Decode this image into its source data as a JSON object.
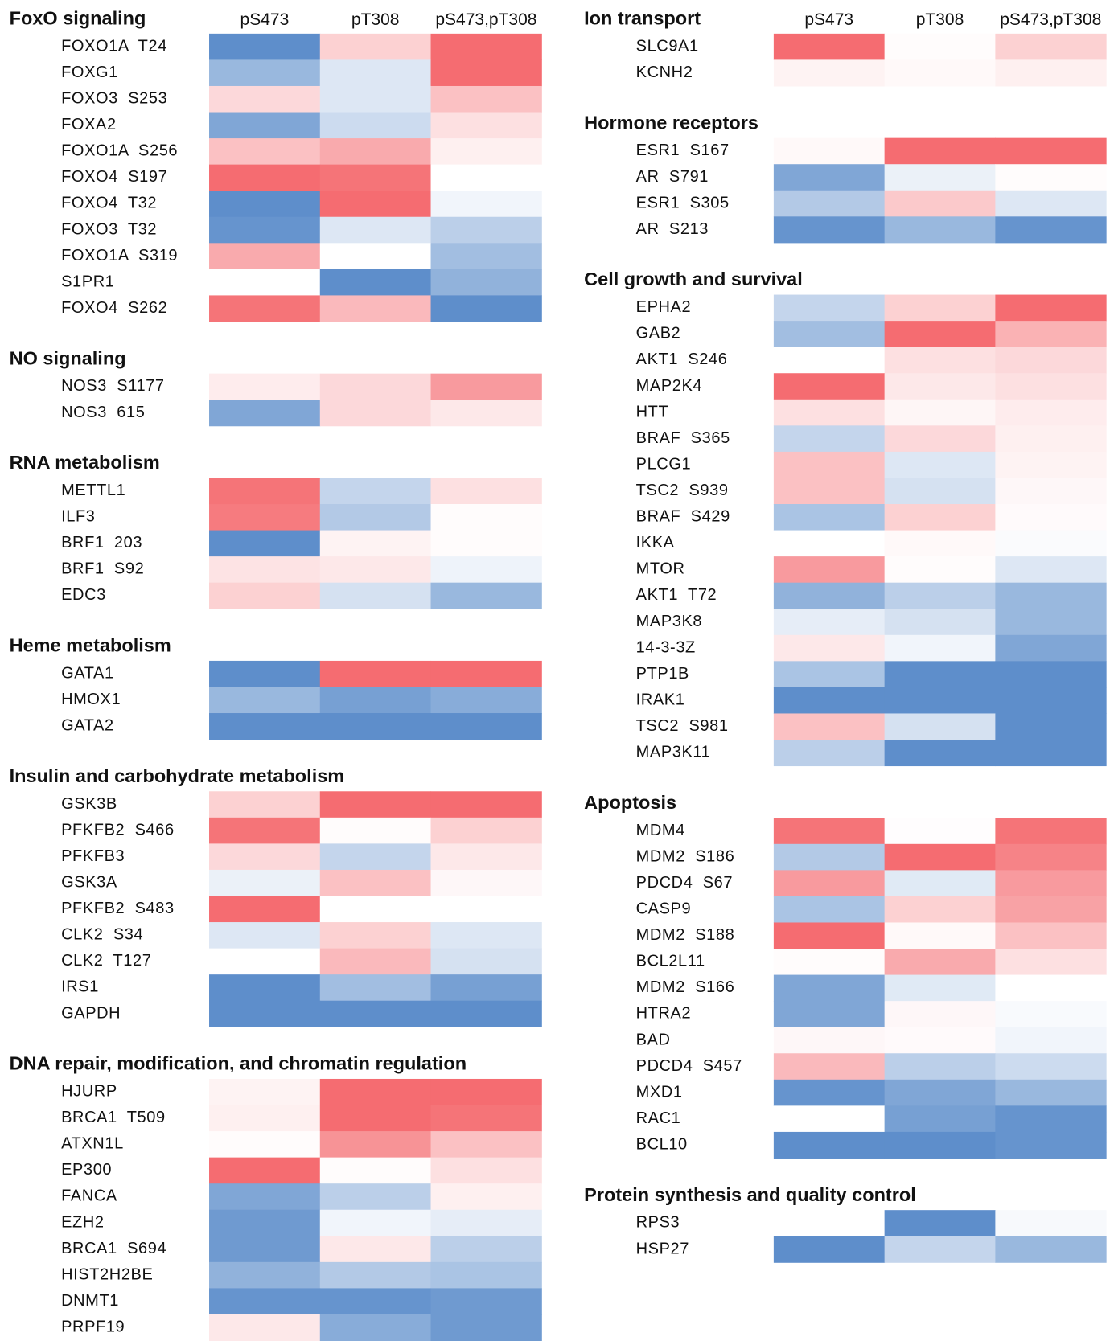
{
  "chart_data": {
    "type": "heatmap",
    "vlim": [
      -1,
      1
    ],
    "colors": {
      "low": "#5588c8",
      "mid": "#ffffff",
      "high": "#f46469"
    },
    "panels": [
      {
        "columns": [
          "pS473",
          "pT308",
          "pS473,pT308"
        ],
        "sections": [
          {
            "title": "FoxO signaling",
            "rows": [
              {
                "label": "FOXO1A  T24",
                "values": [
                  -0.95,
                  0.3,
                  0.95
                ]
              },
              {
                "label": "FOXG1",
                "values": [
                  -0.6,
                  -0.2,
                  0.95
                ]
              },
              {
                "label": "FOXO3  S253",
                "values": [
                  0.25,
                  -0.2,
                  0.4
                ]
              },
              {
                "label": "FOXA2",
                "values": [
                  -0.75,
                  -0.3,
                  0.2
                ]
              },
              {
                "label": "FOXO1A  S256",
                "values": [
                  0.4,
                  0.55,
                  0.1
                ]
              },
              {
                "label": "FOXO4  S197",
                "values": [
                  0.95,
                  0.9,
                  0
                ]
              },
              {
                "label": "FOXO4  T32",
                "values": [
                  -0.95,
                  0.95,
                  -0.08
                ]
              },
              {
                "label": "FOXO3  T32",
                "values": [
                  -0.9,
                  -0.2,
                  -0.4
                ]
              },
              {
                "label": "FOXO1A  S319",
                "values": [
                  0.55,
                  0,
                  -0.55
                ]
              },
              {
                "label": "S1PR1",
                "values": [
                  0,
                  -0.95,
                  -0.65
                ]
              },
              {
                "label": "FOXO4  S262",
                "values": [
                  0.9,
                  0.45,
                  -0.95
                ]
              }
            ]
          },
          {
            "title": "NO signaling",
            "rows": [
              {
                "label": "NOS3  S1177",
                "values": [
                  0.12,
                  0.25,
                  0.65
                ]
              },
              {
                "label": "NOS3  615",
                "values": [
                  -0.75,
                  0.25,
                  0.15
                ]
              }
            ]
          },
          {
            "title": "RNA metabolism",
            "rows": [
              {
                "label": "METTL1",
                "values": [
                  0.9,
                  -0.35,
                  0.2
                ]
              },
              {
                "label": "ILF3",
                "values": [
                  0.85,
                  -0.45,
                  0.02
                ]
              },
              {
                "label": "BRF1  203",
                "values": [
                  -0.95,
                  0.08,
                  0.02
                ]
              },
              {
                "label": "BRF1  S92",
                "values": [
                  0.18,
                  0.15,
                  -0.1
                ]
              },
              {
                "label": "EDC3",
                "values": [
                  0.3,
                  -0.25,
                  -0.6
                ]
              }
            ]
          },
          {
            "title": "Heme metabolism",
            "rows": [
              {
                "label": "GATA1",
                "values": [
                  -0.95,
                  0.95,
                  0.95
                ]
              },
              {
                "label": "HMOX1",
                "values": [
                  -0.6,
                  -0.8,
                  -0.7
                ]
              },
              {
                "label": "GATA2",
                "values": [
                  -0.95,
                  -0.95,
                  -0.95
                ]
              }
            ]
          },
          {
            "title": "Insulin and carbohydrate metabolism",
            "rows": [
              {
                "label": "GSK3B",
                "values": [
                  0.3,
                  0.95,
                  0.95
                ]
              },
              {
                "label": "PFKFB2  S466",
                "values": [
                  0.9,
                  0.02,
                  0.3
                ]
              },
              {
                "label": "PFKFB3",
                "values": [
                  0.25,
                  -0.35,
                  0.15
                ]
              },
              {
                "label": "GSK3A",
                "values": [
                  -0.12,
                  0.4,
                  0.05
                ]
              },
              {
                "label": "PFKFB2  S483",
                "values": [
                  0.95,
                  0,
                  0
                ]
              },
              {
                "label": "CLK2  S34",
                "values": [
                  -0.2,
                  0.3,
                  -0.2
                ]
              },
              {
                "label": "CLK2  T127",
                "values": [
                  0,
                  0.45,
                  -0.25
                ]
              },
              {
                "label": "IRS1",
                "values": [
                  -0.95,
                  -0.55,
                  -0.8
                ]
              },
              {
                "label": "GAPDH",
                "values": [
                  -0.95,
                  -0.95,
                  -0.95
                ]
              }
            ]
          },
          {
            "title": "DNA repair, modification, and chromatin regulation",
            "rows": [
              {
                "label": "HJURP",
                "values": [
                  0.08,
                  0.95,
                  0.95
                ]
              },
              {
                "label": "BRCA1  T509",
                "values": [
                  0.1,
                  0.95,
                  0.9
                ]
              },
              {
                "label": "ATXN1L",
                "values": [
                  0.02,
                  0.7,
                  0.4
                ]
              },
              {
                "label": "EP300",
                "values": [
                  0.95,
                  0.02,
                  0.2
                ]
              },
              {
                "label": "FANCA",
                "values": [
                  -0.75,
                  -0.4,
                  0.1
                ]
              },
              {
                "label": "EZH2",
                "values": [
                  -0.85,
                  -0.08,
                  -0.15
                ]
              },
              {
                "label": "BRCA1  S694",
                "values": [
                  -0.85,
                  0.15,
                  -0.4
                ]
              },
              {
                "label": "HIST2H2BE",
                "values": [
                  -0.65,
                  -0.45,
                  -0.5
                ]
              },
              {
                "label": "DNMT1",
                "values": [
                  -0.9,
                  -0.9,
                  -0.85
                ]
              },
              {
                "label": "PRPF19",
                "values": [
                  0.15,
                  -0.7,
                  -0.85
                ]
              }
            ]
          }
        ]
      },
      {
        "columns": [
          "pS473",
          "pT308",
          "pS473,pT308"
        ],
        "sections": [
          {
            "title": "Ion transport",
            "rows": [
              {
                "label": "SLC9A1",
                "values": [
                  0.95,
                  0.02,
                  0.3
                ]
              },
              {
                "label": "KCNH2",
                "values": [
                  0.08,
                  0.04,
                  0.1
                ]
              }
            ]
          },
          {
            "title": "Hormone receptors",
            "rows": [
              {
                "label": "ESR1  S167",
                "values": [
                  0.04,
                  0.95,
                  0.95
                ]
              },
              {
                "label": "AR  S791",
                "values": [
                  -0.75,
                  -0.12,
                  0.02
                ]
              },
              {
                "label": "ESR1  S305",
                "values": [
                  -0.45,
                  0.35,
                  -0.2
                ]
              },
              {
                "label": "AR  S213",
                "values": [
                  -0.9,
                  -0.6,
                  -0.9
                ]
              }
            ]
          },
          {
            "title": "Cell growth and survival",
            "rows": [
              {
                "label": "EPHA2",
                "values": [
                  -0.35,
                  0.3,
                  0.95
                ]
              },
              {
                "label": "GAB2",
                "values": [
                  -0.55,
                  0.95,
                  0.5
                ]
              },
              {
                "label": "AKT1  S246",
                "values": [
                  0,
                  0.2,
                  0.25
                ]
              },
              {
                "label": "MAP2K4",
                "values": [
                  0.95,
                  0.15,
                  0.2
                ]
              },
              {
                "label": "HTT",
                "values": [
                  0.2,
                  0.06,
                  0.12
                ]
              },
              {
                "label": "BRAF  S365",
                "values": [
                  -0.35,
                  0.25,
                  0.1
                ]
              },
              {
                "label": "PLCG1",
                "values": [
                  0.4,
                  -0.2,
                  0.08
                ]
              },
              {
                "label": "TSC2  S939",
                "values": [
                  0.4,
                  -0.25,
                  0.05
                ]
              },
              {
                "label": "BRAF  S429",
                "values": [
                  -0.5,
                  0.3,
                  0.03
                ]
              },
              {
                "label": "IKKA",
                "values": [
                  0,
                  0.04,
                  -0.03
                ]
              },
              {
                "label": "MTOR",
                "values": [
                  0.65,
                  0.02,
                  -0.2
                ]
              },
              {
                "label": "AKT1  T72",
                "values": [
                  -0.65,
                  -0.4,
                  -0.6
                ]
              },
              {
                "label": "MAP3K8",
                "values": [
                  -0.15,
                  -0.25,
                  -0.6
                ]
              },
              {
                "label": "14-3-3Z",
                "values": [
                  0.15,
                  -0.08,
                  -0.75
                ]
              },
              {
                "label": "PTP1B",
                "values": [
                  -0.5,
                  -0.95,
                  -0.95
                ]
              },
              {
                "label": "IRAK1",
                "values": [
                  -0.95,
                  -0.95,
                  -0.95
                ]
              },
              {
                "label": "TSC2  S981",
                "values": [
                  0.4,
                  -0.25,
                  -0.95
                ]
              },
              {
                "label": "MAP3K11",
                "values": [
                  -0.4,
                  -0.95,
                  -0.95
                ]
              }
            ]
          },
          {
            "title": "Apoptosis",
            "rows": [
              {
                "label": "MDM4",
                "values": [
                  0.9,
                  0.01,
                  0.9
                ]
              },
              {
                "label": "MDM2  S186",
                "values": [
                  -0.45,
                  0.95,
                  0.8
                ]
              },
              {
                "label": "PDCD4  S67",
                "values": [
                  0.65,
                  -0.18,
                  0.65
                ]
              },
              {
                "label": "CASP9",
                "values": [
                  -0.5,
                  0.3,
                  0.6
                ]
              },
              {
                "label": "MDM2  S188",
                "values": [
                  0.95,
                  0.04,
                  0.4
                ]
              },
              {
                "label": "BCL2L11",
                "values": [
                  0.02,
                  0.55,
                  0.2
                ]
              },
              {
                "label": "MDM2  S166",
                "values": [
                  -0.75,
                  -0.18,
                  0
                ]
              },
              {
                "label": "HTRA2",
                "values": [
                  -0.75,
                  0.05,
                  -0.04
                ]
              },
              {
                "label": "BAD",
                "values": [
                  0.05,
                  0.03,
                  -0.08
                ]
              },
              {
                "label": "PDCD4  S457",
                "values": [
                  0.45,
                  -0.4,
                  -0.3
                ]
              },
              {
                "label": "MXD1",
                "values": [
                  -0.9,
                  -0.75,
                  -0.6
                ]
              },
              {
                "label": "RAC1",
                "values": [
                  0,
                  -0.8,
                  -0.9
                ]
              },
              {
                "label": "BCL10",
                "values": [
                  -0.95,
                  -0.95,
                  -0.9
                ]
              }
            ]
          },
          {
            "title": "Protein synthesis and quality control",
            "rows": [
              {
                "label": "RPS3",
                "values": [
                  0,
                  -0.95,
                  -0.05
                ]
              },
              {
                "label": "HSP27",
                "values": [
                  -0.95,
                  -0.35,
                  -0.6
                ]
              }
            ]
          }
        ]
      }
    ]
  }
}
